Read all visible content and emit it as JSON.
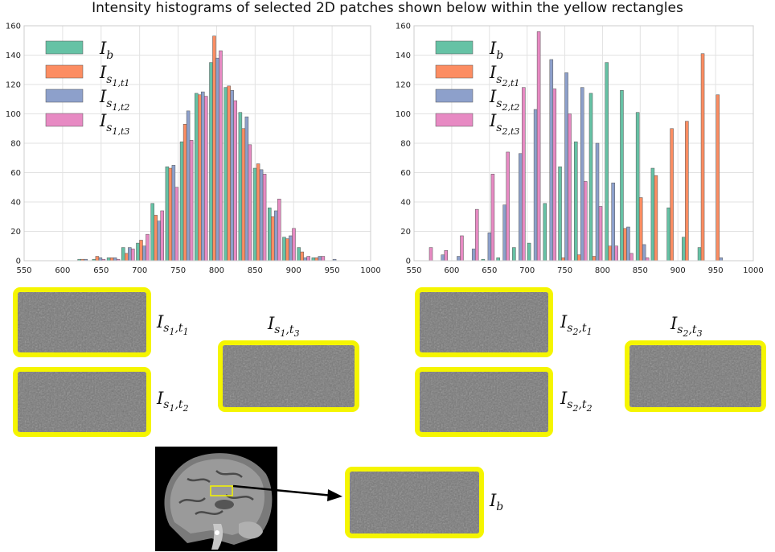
{
  "title": "Intensity histograms of selected 2D patches shown below within the yellow rectangles",
  "colors": {
    "ib": "#66c2a5",
    "t1": "#fc8d62",
    "t2": "#8da0cb",
    "t3": "#e78ac3",
    "patch_border": "#f5f500"
  },
  "chart_data": [
    {
      "type": "bar",
      "xlim": [
        550,
        1000
      ],
      "ylim": [
        0,
        160
      ],
      "xticks": [
        550,
        600,
        650,
        700,
        750,
        800,
        850,
        900,
        950,
        1000
      ],
      "yticks": [
        0,
        20,
        40,
        60,
        80,
        100,
        120,
        140,
        160
      ],
      "grid": true,
      "legend_position": "top-left",
      "x": [
        610,
        628,
        647,
        666,
        685,
        704,
        723,
        742,
        761,
        780,
        799,
        818,
        837,
        856,
        875,
        894,
        913,
        932,
        951,
        970,
        989
      ],
      "series": [
        {
          "name": "I_b",
          "label": {
            "base": "I",
            "sub": "b",
            "subsub": ""
          },
          "color": "#66c2a5",
          "values": [
            0,
            1,
            1,
            2,
            9,
            12,
            39,
            64,
            81,
            114,
            135,
            118,
            101,
            63,
            36,
            16,
            9,
            2,
            0,
            0,
            0
          ]
        },
        {
          "name": "I_{s1,t1}",
          "label": {
            "base": "I",
            "sub": "s",
            "subsub": "1,t1"
          },
          "color": "#fc8d62",
          "values": [
            0,
            1,
            3,
            2,
            5,
            14,
            31,
            63,
            93,
            113,
            153,
            119,
            90,
            66,
            30,
            15,
            6,
            2,
            0,
            0,
            0
          ]
        },
        {
          "name": "I_{s1,t2}",
          "label": {
            "base": "I",
            "sub": "s",
            "subsub": "1,t2"
          },
          "color": "#8da0cb",
          "values": [
            0,
            1,
            2,
            2,
            9,
            10,
            27,
            65,
            102,
            115,
            138,
            116,
            98,
            62,
            34,
            17,
            2,
            3,
            1,
            0,
            0
          ]
        },
        {
          "name": "I_{s1,t3}",
          "label": {
            "base": "I",
            "sub": "s",
            "subsub": "1,t3"
          },
          "color": "#e78ac3",
          "values": [
            0,
            0,
            1,
            1,
            8,
            18,
            34,
            50,
            82,
            112,
            143,
            109,
            79,
            59,
            42,
            22,
            3,
            3,
            0,
            0,
            0
          ]
        }
      ]
    },
    {
      "type": "bar",
      "xlim": [
        550,
        1000
      ],
      "ylim": [
        0,
        160
      ],
      "xticks": [
        550,
        600,
        650,
        700,
        750,
        800,
        850,
        900,
        950,
        1000
      ],
      "yticks": [
        0,
        20,
        40,
        60,
        80,
        100,
        120,
        140,
        160
      ],
      "grid": true,
      "legend_position": "top-left",
      "x": [
        566,
        586,
        607,
        627,
        648,
        668,
        689,
        709,
        730,
        750,
        771,
        791,
        812,
        832,
        853,
        873,
        894,
        914,
        935,
        955,
        976
      ],
      "series": [
        {
          "name": "I_b",
          "label": {
            "base": "I",
            "sub": "b",
            "subsub": ""
          },
          "color": "#66c2a5",
          "values": [
            0,
            0,
            0,
            0,
            1,
            2,
            9,
            12,
            39,
            64,
            81,
            114,
            135,
            116,
            101,
            63,
            36,
            16,
            9,
            0,
            0
          ]
        },
        {
          "name": "I_{s2,t1}",
          "label": {
            "base": "I",
            "sub": "s",
            "subsub": "2,t1"
          },
          "color": "#fc8d62",
          "values": [
            0,
            0,
            0,
            0,
            0,
            0,
            0,
            0,
            0,
            2,
            4,
            3,
            10,
            22,
            43,
            58,
            90,
            95,
            141,
            113,
            0
          ]
        },
        {
          "name": "I_{s2,t2}",
          "label": {
            "base": "I",
            "sub": "s",
            "subsub": "2,t2"
          },
          "color": "#8da0cb",
          "values": [
            0,
            4,
            3,
            8,
            19,
            38,
            73,
            103,
            137,
            128,
            118,
            80,
            53,
            23,
            11,
            0,
            0,
            0,
            0,
            2,
            0
          ]
        },
        {
          "name": "I_{s2,t3}",
          "label": {
            "base": "I",
            "sub": "s",
            "subsub": "2,t3"
          },
          "color": "#e78ac3",
          "values": [
            9,
            7,
            17,
            35,
            59,
            74,
            118,
            156,
            117,
            100,
            54,
            37,
            10,
            5,
            2,
            0,
            0,
            0,
            0,
            0,
            0
          ]
        }
      ]
    }
  ],
  "patches": {
    "s1t1": {
      "base": "I",
      "sub": "s",
      "subsub": "1",
      "sub2": ",t",
      "subsub2": "1"
    },
    "s1t2": {
      "base": "I",
      "sub": "s",
      "subsub": "1",
      "sub2": ",t",
      "subsub2": "2"
    },
    "s1t3": {
      "base": "I",
      "sub": "s",
      "subsub": "1",
      "sub2": ",t",
      "subsub2": "3"
    },
    "s2t1": {
      "base": "I",
      "sub": "s",
      "subsub": "2",
      "sub2": ",t",
      "subsub2": "1"
    },
    "s2t2": {
      "base": "I",
      "sub": "s",
      "subsub": "2",
      "sub2": ",t",
      "subsub2": "2"
    },
    "s2t3": {
      "base": "I",
      "sub": "s",
      "subsub": "2",
      "sub2": ",t",
      "subsub2": "3"
    },
    "ib": {
      "base": "I",
      "sub": "b"
    }
  }
}
